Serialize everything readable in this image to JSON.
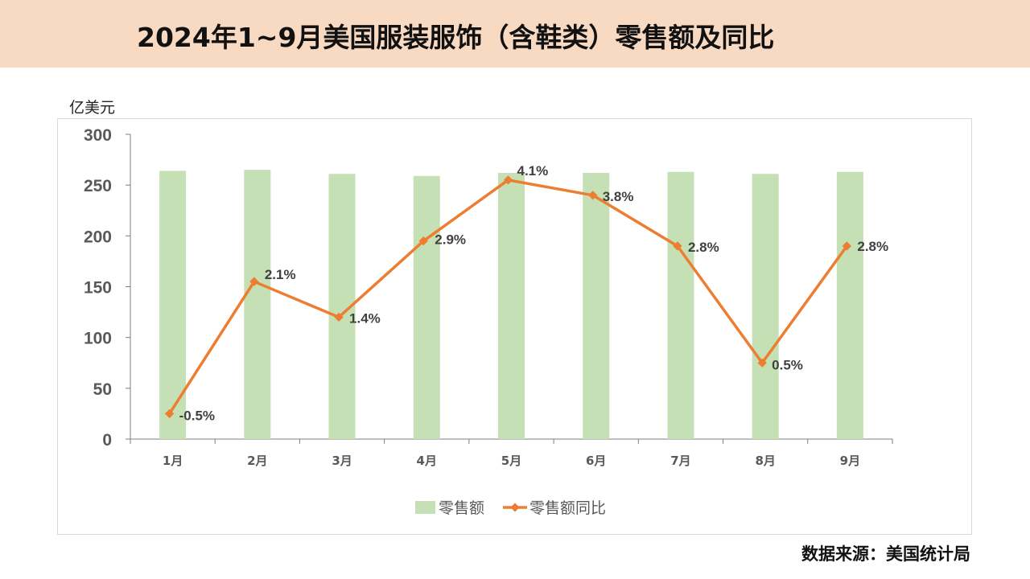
{
  "header": {
    "title": "2024年1~9月美国服装服饰（含鞋类）零售额及同比"
  },
  "source": "数据来源：美国统计局",
  "chart_data": {
    "type": "bar",
    "categories": [
      "1月",
      "2月",
      "3月",
      "4月",
      "5月",
      "6月",
      "7月",
      "8月",
      "9月"
    ],
    "ylabel": "亿美元",
    "ylim": [
      0,
      300
    ],
    "yticks": [
      0,
      50,
      100,
      150,
      200,
      250,
      300
    ],
    "grid": false,
    "legend_position": "bottom",
    "series": [
      {
        "name": "零售额",
        "type": "bar",
        "color": "#c5e0b4",
        "values": [
          264,
          265,
          261,
          259,
          262,
          262,
          263,
          261,
          263
        ]
      },
      {
        "name": "零售额同比",
        "type": "line",
        "color": "#ed7d31",
        "unit": "%",
        "values": [
          -0.5,
          2.1,
          1.4,
          2.9,
          4.1,
          3.8,
          2.8,
          0.5,
          2.8
        ],
        "labels": [
          "-0.5%",
          "2.1%",
          "1.4%",
          "2.9%",
          "4.1%",
          "3.8%",
          "2.8%",
          "0.5%",
          "2.8%"
        ]
      }
    ]
  }
}
